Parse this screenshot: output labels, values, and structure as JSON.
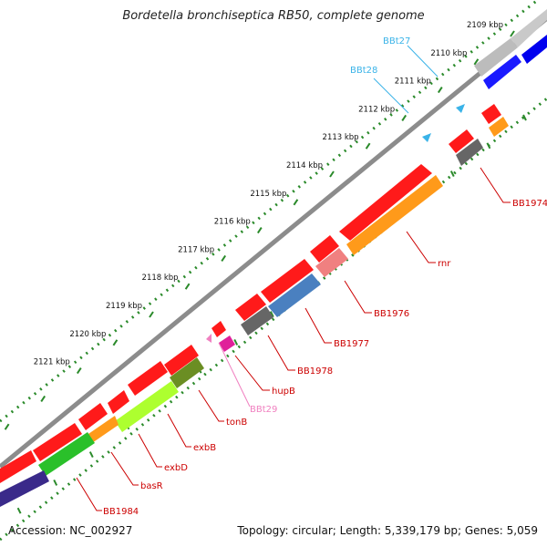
{
  "title": "Bordetella bronchiseptica RB50, complete genome",
  "footer": {
    "accession": "Accession: NC_002927",
    "summary": "Topology: circular; Length: 5,339,179 bp; Genes: 5,059"
  },
  "colors": {
    "backbone": "#8c8c8c",
    "dotted_track": "#2a8a2a",
    "gene_label": "#cc0000",
    "trna_label": "#3ab3e8",
    "trna29_label": "#f080c0",
    "forward_gene": "#ff1a1a"
  },
  "ruler": [
    "2109 kbp",
    "2110 kbp",
    "2111 kbp",
    "2112 kbp",
    "2113 kbp",
    "2114 kbp",
    "2115 kbp",
    "2116 kbp",
    "2117 kbp",
    "2118 kbp",
    "2119 kbp",
    "2120 kbp",
    "2121 kbp"
  ],
  "labels": {
    "trna": [
      "BBt27",
      "BBt28"
    ],
    "trna29": "BBt29",
    "genes": [
      "BB1974",
      "rnr",
      "BB1976",
      "BB1977",
      "BB1978",
      "hupB",
      "tonB",
      "exbB",
      "exbD",
      "basR",
      "BB1984"
    ]
  }
}
